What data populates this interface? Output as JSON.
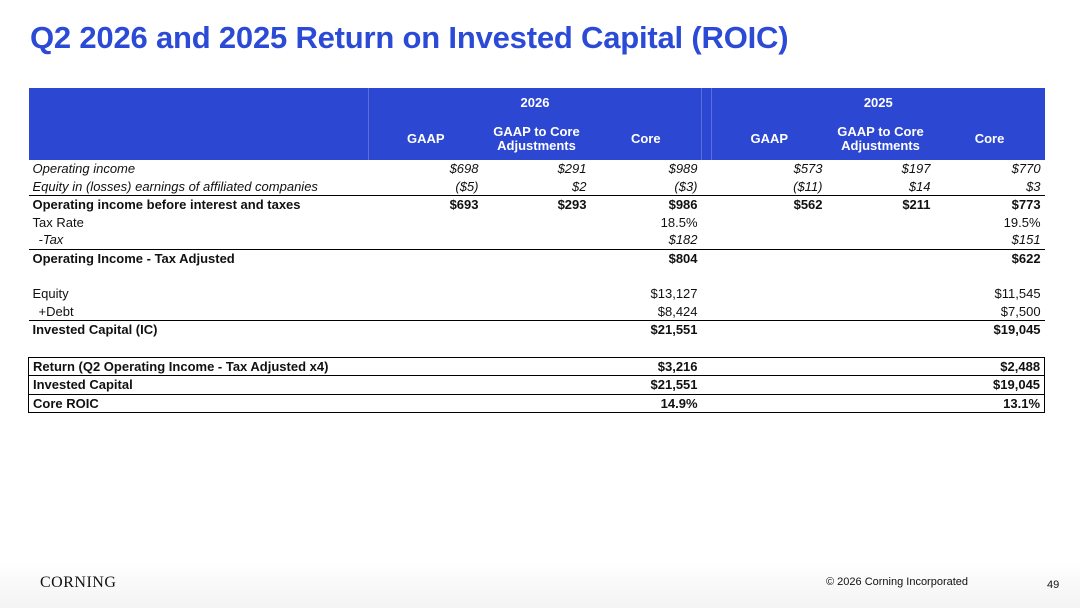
{
  "title": "Q2 2026 and 2025 Return on Invested Capital (ROIC)",
  "table": {
    "groups": [
      {
        "year": "2026",
        "columns": [
          "GAAP",
          "GAAP to Core Adjustments",
          "Core"
        ]
      },
      {
        "year": "2025",
        "columns": [
          "GAAP",
          "GAAP to Core Adjustments",
          "Core"
        ]
      }
    ],
    "rows": [
      {
        "label": "Operating income",
        "cells": [
          "$698",
          "$291",
          "$989",
          "$573",
          "$197",
          "$770"
        ]
      },
      {
        "label": "Equity in (losses) earnings of affiliated companies",
        "cells": [
          "($5)",
          "$2",
          "($3)",
          "($11)",
          "$14",
          "$3"
        ]
      },
      {
        "label": "Operating income before interest and taxes",
        "cells": [
          "$693",
          "$293",
          "$986",
          "$562",
          "$211",
          "$773"
        ]
      },
      {
        "label": "Tax Rate",
        "cells": [
          null,
          null,
          "18.5%",
          null,
          null,
          "19.5%"
        ]
      },
      {
        "label": "-Tax",
        "cells": [
          null,
          null,
          "$182",
          null,
          null,
          "$151"
        ]
      },
      {
        "label": "Operating Income - Tax Adjusted",
        "cells": [
          null,
          null,
          "$804",
          null,
          null,
          "$622"
        ]
      },
      {
        "label": "Equity",
        "cells": [
          null,
          null,
          "$13,127",
          null,
          null,
          "$11,545"
        ]
      },
      {
        "label": "+Debt",
        "cells": [
          null,
          null,
          "$8,424",
          null,
          null,
          "$7,500"
        ]
      },
      {
        "label": "Invested Capital (IC)",
        "cells": [
          null,
          null,
          "$21,551",
          null,
          null,
          "$19,045"
        ]
      },
      {
        "label": "Return (Q2 Operating Income - Tax Adjusted x4)",
        "cells": [
          null,
          null,
          "$3,216",
          null,
          null,
          "$2,488"
        ]
      },
      {
        "label": "Invested Capital",
        "cells": [
          null,
          null,
          "$21,551",
          null,
          null,
          "$19,045"
        ]
      },
      {
        "label": "Core ROIC",
        "cells": [
          null,
          null,
          "14.9%",
          null,
          null,
          "13.1%"
        ]
      }
    ]
  },
  "footer": {
    "logo": "CORNING",
    "copyright": "© 2026 Corning Incorporated",
    "page": "49"
  }
}
